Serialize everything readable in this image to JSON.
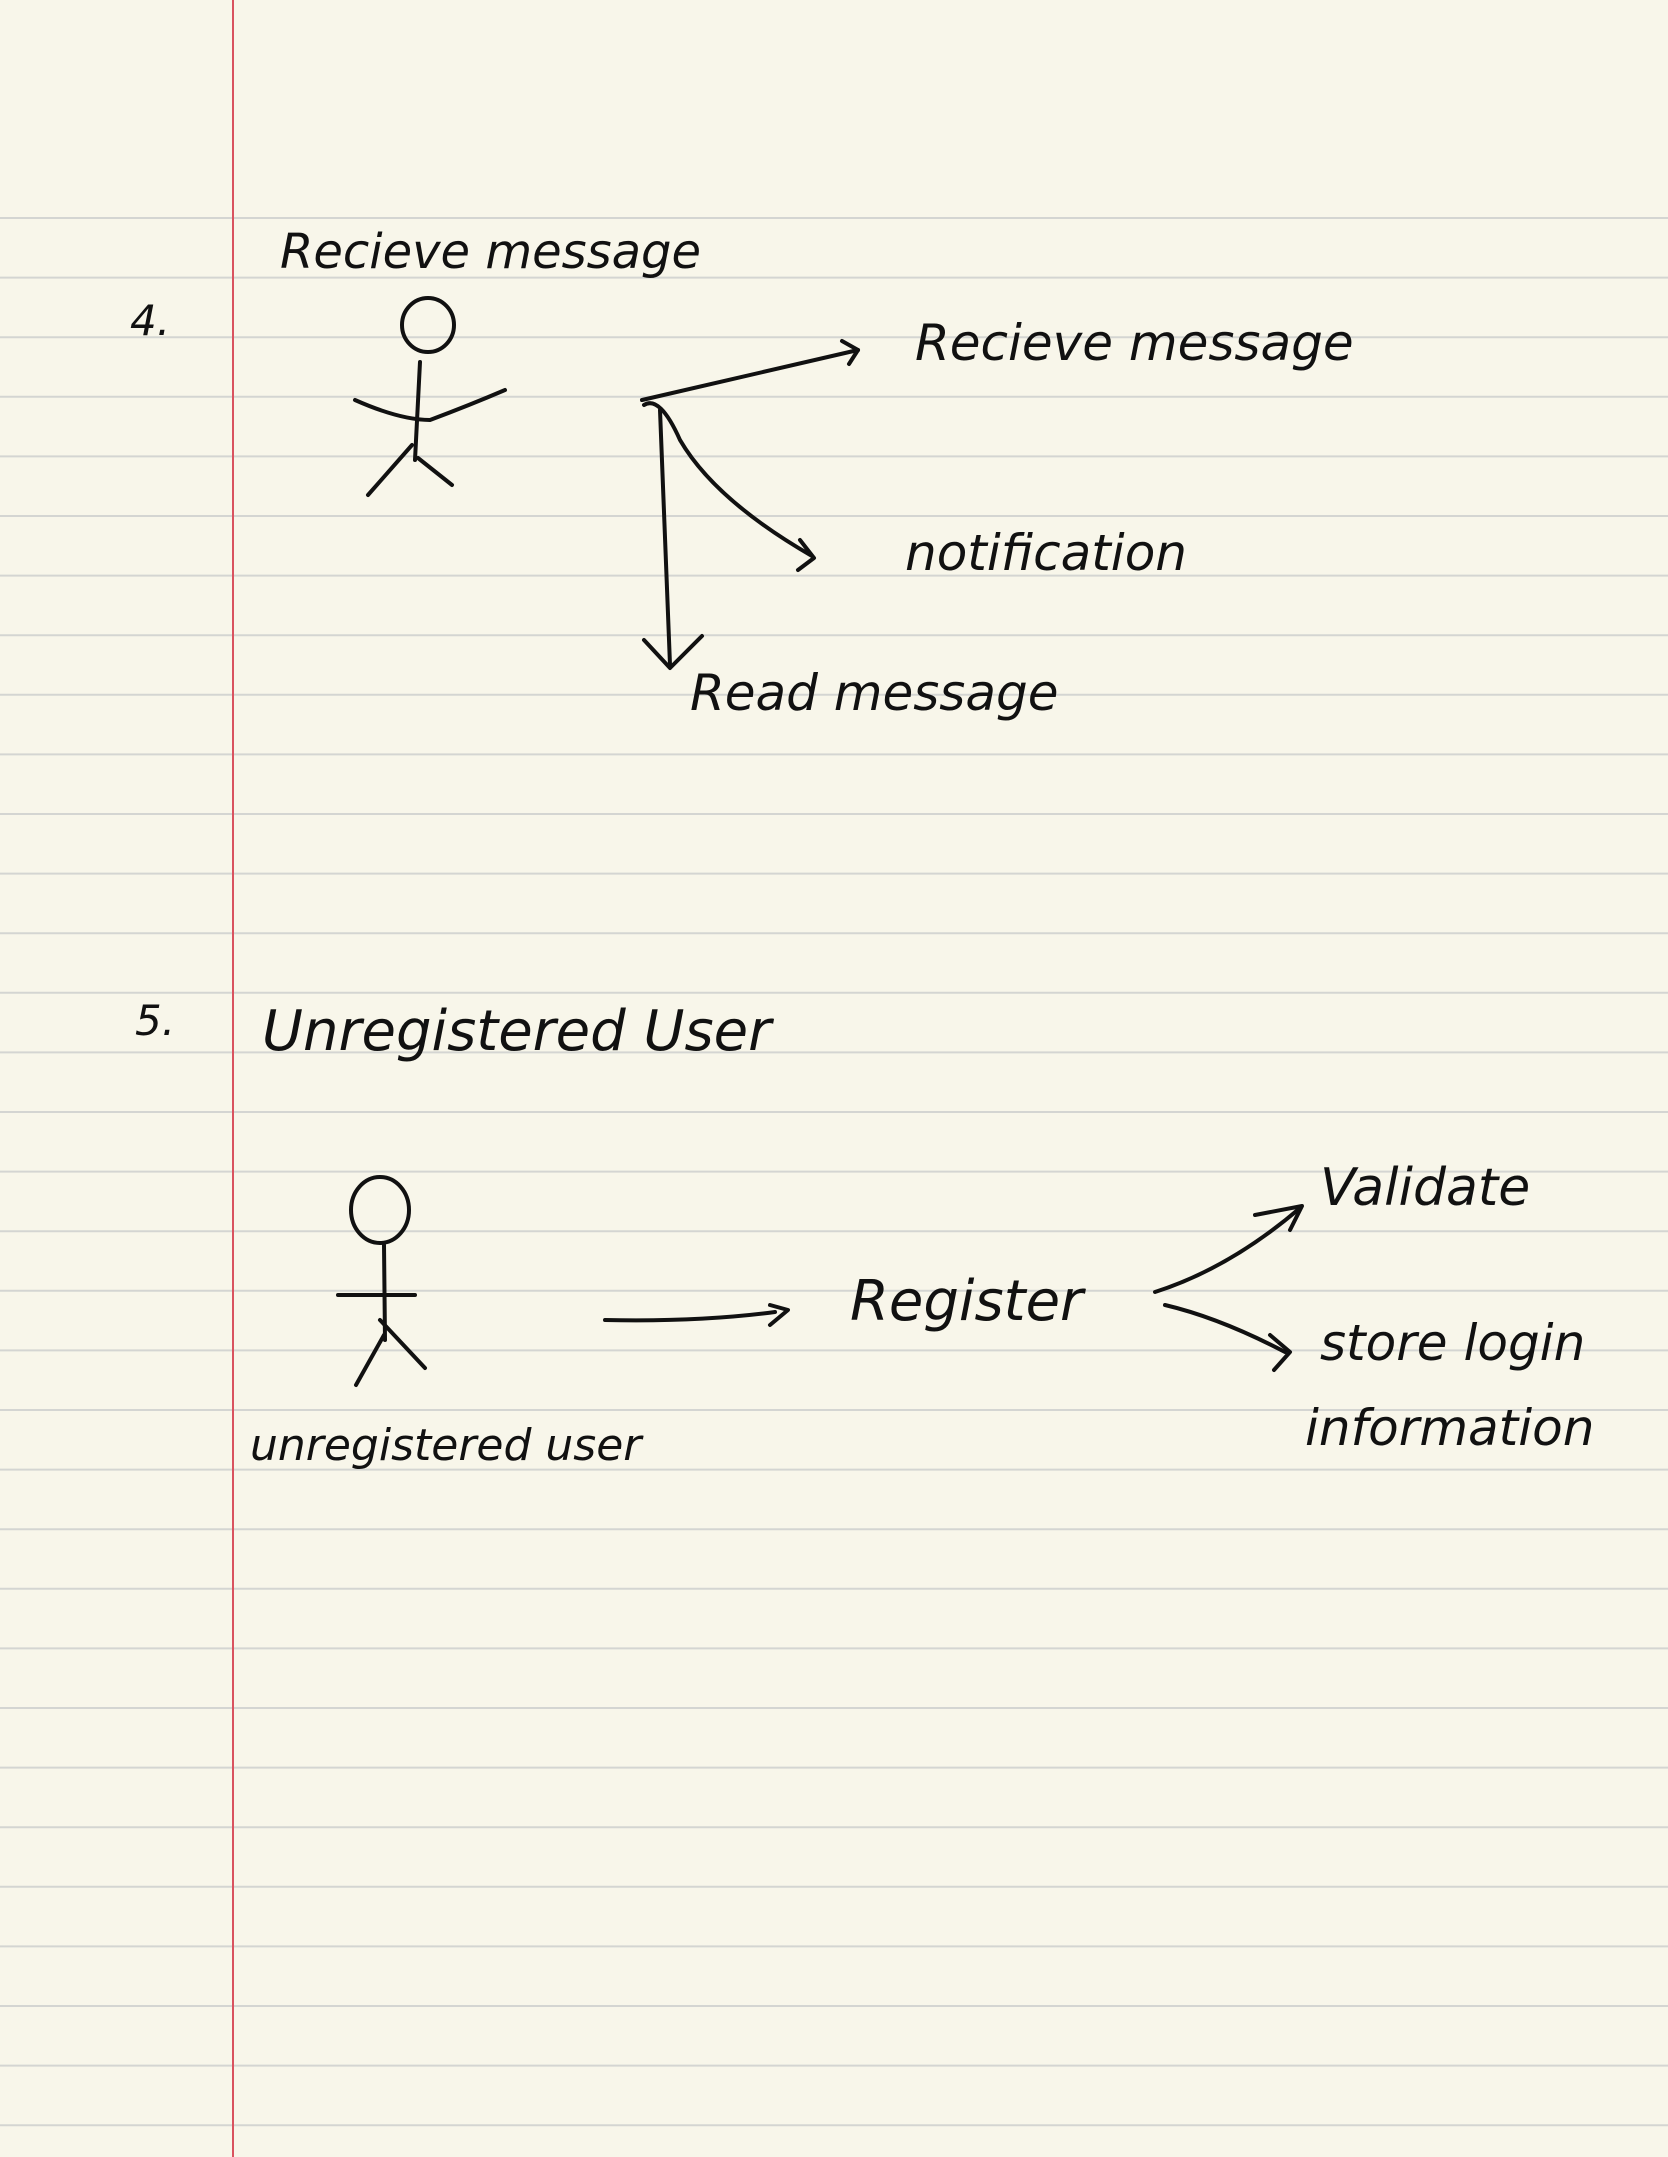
{
  "sections": [
    {
      "number": "4.",
      "heading": "Recieve message",
      "actor_label": "",
      "use_cases": [
        "Recieve message",
        "notification",
        "Read message"
      ]
    },
    {
      "number": "5.",
      "heading": "Unregistered User",
      "actor_label": "unregistered user",
      "use_cases": [
        "Register",
        "Validate",
        "store login information"
      ]
    }
  ],
  "colors": {
    "paper": "#f8f6ea",
    "rule": "#d4d5d2",
    "margin": "#d9535f",
    "ink": "#111111"
  }
}
